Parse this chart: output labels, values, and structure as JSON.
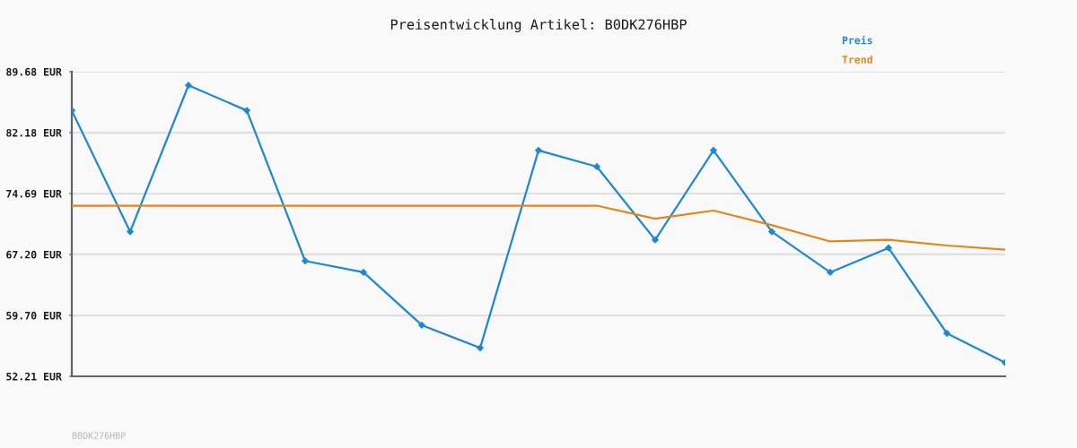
{
  "chart_data": {
    "type": "line",
    "title": "Preisentwicklung Artikel: B0DK276HBP",
    "categories": [
      null,
      null,
      null,
      null,
      null,
      null,
      null,
      null,
      null,
      null,
      null,
      null,
      null,
      null,
      null,
      null,
      null
    ],
    "series": [
      {
        "name": "Preis",
        "color": "#1e88d2",
        "values": [
          84.9,
          70.0,
          88.0,
          84.9,
          66.4,
          65.0,
          58.5,
          55.7,
          80.0,
          78.0,
          69.0,
          80.0,
          70.0,
          65.0,
          68.0,
          57.5,
          53.9
        ]
      },
      {
        "name": "Trend",
        "color": "#e3861c",
        "marker": "none",
        "values": [
          73.2,
          73.2,
          73.2,
          73.2,
          73.2,
          73.2,
          73.2,
          73.2,
          73.2,
          73.2,
          71.6,
          72.6,
          70.8,
          68.8,
          69.0,
          68.3,
          67.8
        ]
      }
    ],
    "ylim": [
      52.21,
      89.68
    ],
    "yticks": [
      {
        "value": 52.21,
        "label": "52.21 EUR"
      },
      {
        "value": 59.7,
        "label": "59.70 EUR"
      },
      {
        "value": 67.2,
        "label": "67.20 EUR"
      },
      {
        "value": 74.69,
        "label": "74.69 EUR"
      },
      {
        "value": 82.18,
        "label": "82.18 EUR"
      },
      {
        "value": 89.68,
        "label": "89.68 EUR"
      }
    ],
    "grid": "y",
    "legend": "top right",
    "marker": "diamond",
    "tick_labels": "y",
    "annotations": [
      "B0DK276HBP"
    ]
  }
}
